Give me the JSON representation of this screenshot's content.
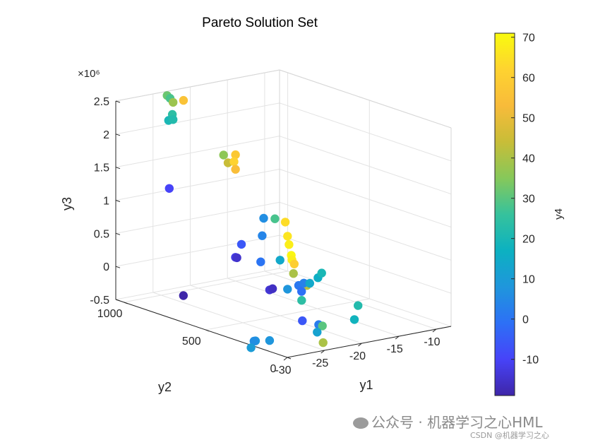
{
  "watermark": {
    "main": "公众号 · 机器学习之心HML",
    "sub": "CSDN @机器学习之心"
  },
  "chart_data": {
    "type": "scatter3d",
    "title": "Pareto Solution Set",
    "xlabel": "y1",
    "ylabel": "y2",
    "zlabel": "y3",
    "colorbar_label": "y4",
    "z_exponent_label": "×10⁶",
    "xlim": [
      -30,
      -8
    ],
    "ylim": [
      0,
      1050
    ],
    "zlim": [
      -0.5,
      2.5
    ],
    "xticks": [
      -30,
      -25,
      -20,
      -15,
      -10
    ],
    "xticklabels": [
      "-30",
      "-25",
      "-20",
      "-15",
      "-10"
    ],
    "yticks": [
      0,
      500,
      1000
    ],
    "yticklabels": [
      "0",
      "500",
      "1000"
    ],
    "zticks": [
      -0.5,
      0,
      0.5,
      1,
      1.5,
      2,
      2.5
    ],
    "zticklabels": [
      "-0.5",
      "0",
      "0.5",
      "1",
      "1.5",
      "2",
      "2.5"
    ],
    "clim": [
      -19,
      71
    ],
    "cticks": [
      -10,
      0,
      10,
      20,
      30,
      40,
      50,
      60,
      70
    ],
    "cticklabels": [
      "-10",
      "0",
      "10",
      "20",
      "30",
      "40",
      "50",
      "60",
      "70"
    ],
    "grid": true,
    "colormap": [
      "#3e26a8",
      "#4743f8",
      "#2d70f6",
      "#1f96dc",
      "#0cb1c1",
      "#36c29c",
      "#86c85a",
      "#c8bd38",
      "#f8bb3a",
      "#fed330",
      "#f9fb0e"
    ],
    "points": [
      {
        "x": -24.2,
        "y": 1000,
        "z": 2.5,
        "c": 32
      },
      {
        "x": -23.8,
        "y": 1000,
        "z": 2.45,
        "c": 28
      },
      {
        "x": -23.4,
        "y": 1000,
        "z": 2.38,
        "c": 38
      },
      {
        "x": -22.0,
        "y": 1000,
        "z": 2.38,
        "c": 56
      },
      {
        "x": -23.5,
        "y": 1000,
        "z": 2.2,
        "c": 24
      },
      {
        "x": -24.0,
        "y": 1000,
        "z": 2.12,
        "c": 20
      },
      {
        "x": -23.4,
        "y": 1000,
        "z": 2.12,
        "c": 22
      },
      {
        "x": -23.2,
        "y": 700,
        "z": 1.83,
        "c": 36
      },
      {
        "x": -21.6,
        "y": 700,
        "z": 1.8,
        "c": 58
      },
      {
        "x": -22.6,
        "y": 700,
        "z": 1.7,
        "c": 44
      },
      {
        "x": -21.8,
        "y": 700,
        "z": 1.7,
        "c": 62
      },
      {
        "x": -21.6,
        "y": 700,
        "z": 1.58,
        "c": 54
      },
      {
        "x": -22.2,
        "y": 500,
        "z": 1.02,
        "c": 6
      },
      {
        "x": -20.7,
        "y": 500,
        "z": 0.98,
        "c": 28
      },
      {
        "x": -22.4,
        "y": 500,
        "z": 0.76,
        "c": 4
      },
      {
        "x": -19.3,
        "y": 500,
        "z": 0.9,
        "c": 64
      },
      {
        "x": -19.0,
        "y": 500,
        "z": 0.68,
        "c": 66
      },
      {
        "x": -18.8,
        "y": 500,
        "z": 0.55,
        "c": 68
      },
      {
        "x": -18.5,
        "y": 500,
        "z": 0.38,
        "c": 70
      },
      {
        "x": -18.4,
        "y": 500,
        "z": 0.31,
        "c": 68
      },
      {
        "x": -20.0,
        "y": 500,
        "z": 0.34,
        "c": 14
      },
      {
        "x": -18.1,
        "y": 500,
        "z": 0.24,
        "c": 60
      },
      {
        "x": -22.6,
        "y": 500,
        "z": 0.37,
        "c": 0
      },
      {
        "x": -18.2,
        "y": 500,
        "z": 0.1,
        "c": 40
      },
      {
        "x": -19.0,
        "y": 500,
        "z": -0.12,
        "c": 8
      },
      {
        "x": -16.4,
        "y": 500,
        "z": -0.12,
        "c": 42
      },
      {
        "x": -17.1,
        "y": 500,
        "z": -0.33,
        "c": 24
      },
      {
        "x": -26.1,
        "y": 900,
        "z": 1.22,
        "c": -10
      },
      {
        "x": -23.0,
        "y": 600,
        "z": 0.56,
        "c": -6
      },
      {
        "x": -23.8,
        "y": 600,
        "z": 0.38,
        "c": -12
      },
      {
        "x": -23.6,
        "y": 600,
        "z": 0.37,
        "c": -15
      },
      {
        "x": -23.6,
        "y": 400,
        "z": 0.05,
        "c": -14
      },
      {
        "x": -23.2,
        "y": 400,
        "z": 0.06,
        "c": -16
      },
      {
        "x": -26.4,
        "y": 800,
        "z": -0.31,
        "c": -19
      },
      {
        "x": -20.8,
        "y": 350,
        "z": 0.1,
        "c": 1
      },
      {
        "x": -20.1,
        "y": 350,
        "z": 0.12,
        "c": 3
      },
      {
        "x": -20.4,
        "y": 350,
        "z": 0.0,
        "c": -1
      },
      {
        "x": -19.3,
        "y": 350,
        "z": 0.1,
        "c": 14
      },
      {
        "x": -18.2,
        "y": 350,
        "z": 0.16,
        "c": 16
      },
      {
        "x": -17.7,
        "y": 350,
        "z": 0.22,
        "c": 20
      },
      {
        "x": -18.3,
        "y": 100,
        "z": -0.05,
        "c": 22
      },
      {
        "x": -18.8,
        "y": 100,
        "z": -0.25,
        "c": 18
      },
      {
        "x": -21.4,
        "y": 300,
        "z": -0.38,
        "c": -6
      },
      {
        "x": -20.3,
        "y": 250,
        "z": -0.42,
        "c": 2
      },
      {
        "x": -19.8,
        "y": 250,
        "z": -0.45,
        "c": 30
      },
      {
        "x": -20.5,
        "y": 250,
        "z": -0.53,
        "c": 12
      },
      {
        "x": -20.8,
        "y": 200,
        "z": -0.64,
        "c": 40
      },
      {
        "x": -24.7,
        "y": 350,
        "z": -0.65,
        "c": 8
      },
      {
        "x": -25.5,
        "y": 400,
        "z": -0.68,
        "c": 8
      },
      {
        "x": -25.7,
        "y": 400,
        "z": -0.68,
        "c": 6
      },
      {
        "x": -26.1,
        "y": 400,
        "z": -0.77,
        "c": 10
      }
    ]
  }
}
